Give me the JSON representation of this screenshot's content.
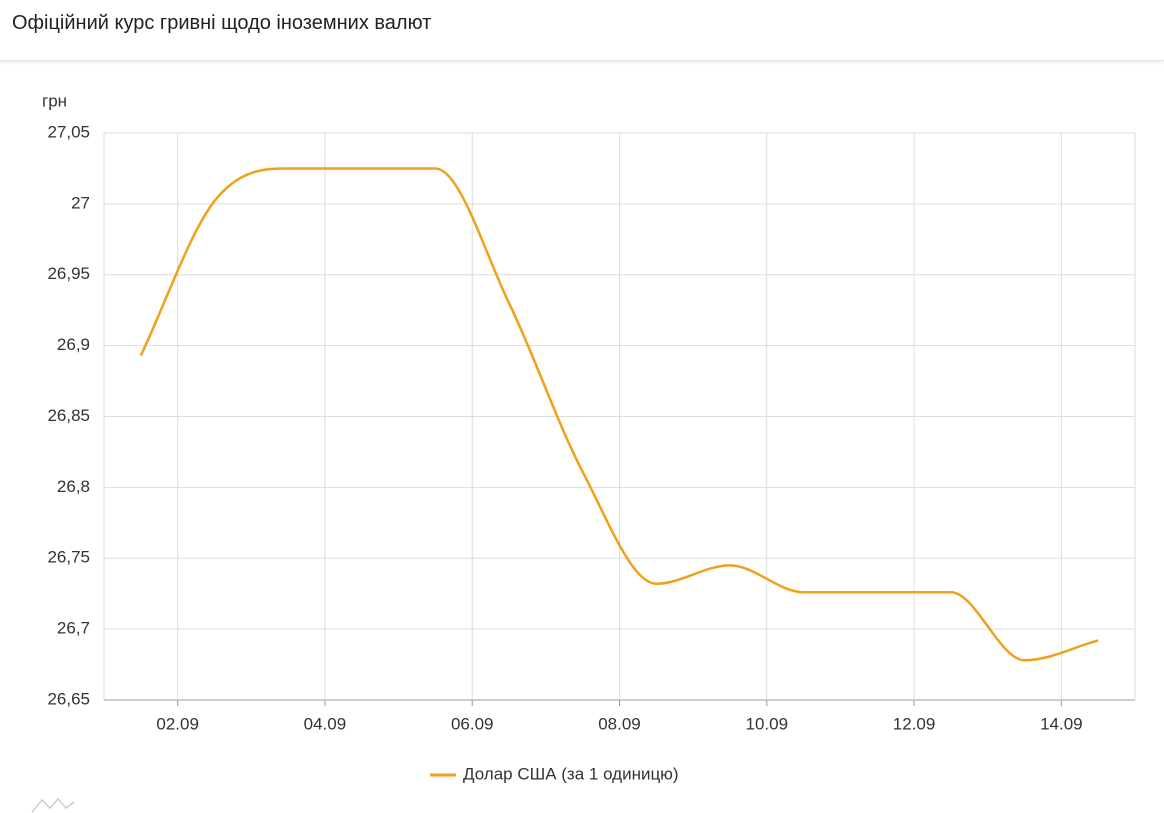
{
  "chart_data": {
    "type": "line",
    "title": "Офіційний курс гривні щодо іноземних валют",
    "y_label": "грн",
    "x": [
      1.5,
      2.5,
      3.5,
      4.5,
      5.5,
      6.5,
      7.5,
      8.5,
      9.5,
      10.5,
      11.5,
      12.5,
      13.5,
      14.5
    ],
    "series": [
      {
        "name": "Долар США (за 1 одиницю)",
        "color": "#f0a11b",
        "values": [
          26.893,
          27.002,
          27.025,
          27.025,
          27.025,
          26.93,
          26.811,
          26.732,
          26.745,
          26.726,
          26.726,
          26.726,
          26.678,
          26.692
        ]
      }
    ],
    "xlim": [
      1,
      15
    ],
    "xticks": [
      {
        "value": 2,
        "label": "02.09"
      },
      {
        "value": 4,
        "label": "04.09"
      },
      {
        "value": 6,
        "label": "06.09"
      },
      {
        "value": 8,
        "label": "08.09"
      },
      {
        "value": 10,
        "label": "10.09"
      },
      {
        "value": 12,
        "label": "12.09"
      },
      {
        "value": 14,
        "label": "14.09"
      }
    ],
    "ylim": [
      26.65,
      27.05
    ],
    "yticks": [
      {
        "value": 26.65,
        "label": "26,65"
      },
      {
        "value": 26.7,
        "label": "26,7"
      },
      {
        "value": 26.75,
        "label": "26,75"
      },
      {
        "value": 26.8,
        "label": "26,8"
      },
      {
        "value": 26.85,
        "label": "26,85"
      },
      {
        "value": 26.9,
        "label": "26,9"
      },
      {
        "value": 26.95,
        "label": "26,95"
      },
      27,
      {
        "value": 27.05,
        "label": "27,05"
      }
    ],
    "grid": true,
    "legend": "bottom"
  }
}
